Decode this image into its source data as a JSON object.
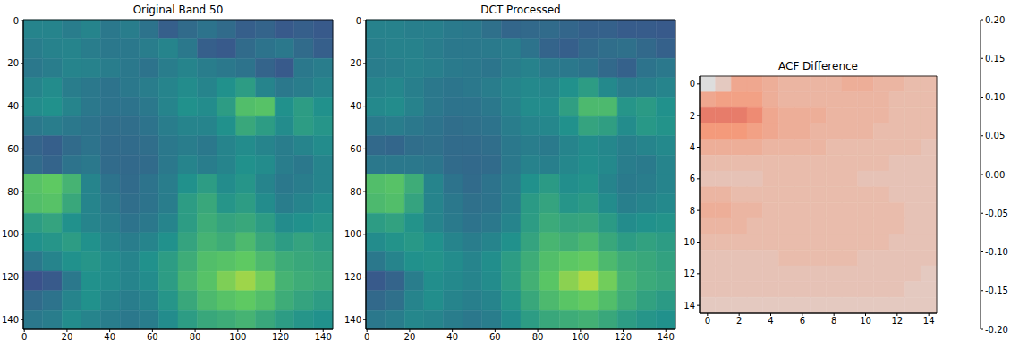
{
  "chart_data": [
    {
      "type": "image",
      "title": "Original Band 50",
      "color": "viridis",
      "clim": [
        0,
        1
      ],
      "xlim": [
        -0.5,
        144.5
      ],
      "ylim": [
        -0.5,
        144.5
      ],
      "xticks": [
        0,
        20,
        40,
        60,
        80,
        100,
        120,
        140
      ],
      "yticks": [
        0,
        20,
        40,
        60,
        80,
        100,
        120,
        140
      ],
      "cells": [
        [
          0.45,
          0.45,
          0.42,
          0.45,
          0.4,
          0.42,
          0.38,
          0.3,
          0.35,
          0.38,
          0.35,
          0.3,
          0.32,
          0.28,
          0.3,
          0.28
        ],
        [
          0.42,
          0.44,
          0.45,
          0.42,
          0.4,
          0.4,
          0.42,
          0.45,
          0.4,
          0.3,
          0.28,
          0.35,
          0.38,
          0.4,
          0.35,
          0.3
        ],
        [
          0.4,
          0.42,
          0.45,
          0.44,
          0.42,
          0.4,
          0.38,
          0.42,
          0.45,
          0.42,
          0.4,
          0.38,
          0.32,
          0.28,
          0.4,
          0.42
        ],
        [
          0.45,
          0.48,
          0.42,
          0.4,
          0.38,
          0.4,
          0.42,
          0.45,
          0.48,
          0.45,
          0.5,
          0.55,
          0.45,
          0.4,
          0.42,
          0.45
        ],
        [
          0.48,
          0.5,
          0.45,
          0.4,
          0.38,
          0.38,
          0.4,
          0.45,
          0.5,
          0.48,
          0.55,
          0.7,
          0.72,
          0.5,
          0.55,
          0.5
        ],
        [
          0.4,
          0.42,
          0.4,
          0.38,
          0.36,
          0.36,
          0.38,
          0.42,
          0.45,
          0.45,
          0.5,
          0.6,
          0.55,
          0.48,
          0.55,
          0.52
        ],
        [
          0.32,
          0.3,
          0.35,
          0.38,
          0.35,
          0.35,
          0.36,
          0.4,
          0.42,
          0.4,
          0.45,
          0.48,
          0.45,
          0.42,
          0.45,
          0.48
        ],
        [
          0.35,
          0.32,
          0.38,
          0.4,
          0.35,
          0.34,
          0.35,
          0.4,
          0.45,
          0.42,
          0.45,
          0.5,
          0.48,
          0.42,
          0.4,
          0.45
        ],
        [
          0.72,
          0.75,
          0.65,
          0.45,
          0.38,
          0.35,
          0.38,
          0.42,
          0.5,
          0.55,
          0.48,
          0.52,
          0.45,
          0.4,
          0.42,
          0.45
        ],
        [
          0.7,
          0.72,
          0.6,
          0.45,
          0.4,
          0.36,
          0.38,
          0.42,
          0.55,
          0.6,
          0.52,
          0.55,
          0.48,
          0.42,
          0.45,
          0.48
        ],
        [
          0.55,
          0.58,
          0.5,
          0.45,
          0.42,
          0.38,
          0.4,
          0.45,
          0.55,
          0.62,
          0.58,
          0.6,
          0.55,
          0.48,
          0.5,
          0.52
        ],
        [
          0.5,
          0.52,
          0.55,
          0.5,
          0.45,
          0.42,
          0.45,
          0.5,
          0.58,
          0.65,
          0.62,
          0.68,
          0.6,
          0.55,
          0.58,
          0.55
        ],
        [
          0.4,
          0.45,
          0.5,
          0.52,
          0.48,
          0.45,
          0.5,
          0.55,
          0.62,
          0.7,
          0.72,
          0.75,
          0.68,
          0.62,
          0.6,
          0.58
        ],
        [
          0.25,
          0.28,
          0.4,
          0.5,
          0.48,
          0.45,
          0.48,
          0.55,
          0.65,
          0.72,
          0.8,
          0.85,
          0.78,
          0.65,
          0.62,
          0.6
        ],
        [
          0.35,
          0.38,
          0.45,
          0.5,
          0.45,
          0.42,
          0.45,
          0.52,
          0.6,
          0.68,
          0.72,
          0.75,
          0.7,
          0.62,
          0.58,
          0.55
        ],
        [
          0.4,
          0.42,
          0.48,
          0.45,
          0.42,
          0.4,
          0.42,
          0.48,
          0.55,
          0.6,
          0.62,
          0.65,
          0.6,
          0.55,
          0.52,
          0.5
        ]
      ]
    },
    {
      "type": "image",
      "title": "DCT Processed",
      "color": "viridis",
      "clim": [
        0,
        1
      ],
      "xlim": [
        -0.5,
        144.5
      ],
      "ylim": [
        -0.5,
        144.5
      ],
      "xticks": [
        0,
        20,
        40,
        60,
        80,
        100,
        120,
        140
      ],
      "yticks": [
        0,
        20,
        40,
        60,
        80,
        100,
        120,
        140
      ],
      "cells": [
        [
          0.44,
          0.44,
          0.43,
          0.43,
          0.41,
          0.4,
          0.37,
          0.33,
          0.34,
          0.35,
          0.33,
          0.31,
          0.31,
          0.29,
          0.29,
          0.28
        ],
        [
          0.43,
          0.44,
          0.44,
          0.42,
          0.4,
          0.4,
          0.41,
          0.42,
          0.38,
          0.32,
          0.3,
          0.34,
          0.36,
          0.37,
          0.34,
          0.31
        ],
        [
          0.42,
          0.43,
          0.44,
          0.43,
          0.41,
          0.4,
          0.39,
          0.42,
          0.44,
          0.41,
          0.4,
          0.38,
          0.34,
          0.31,
          0.38,
          0.4
        ],
        [
          0.45,
          0.46,
          0.43,
          0.4,
          0.39,
          0.4,
          0.42,
          0.45,
          0.47,
          0.46,
          0.5,
          0.55,
          0.47,
          0.42,
          0.43,
          0.45
        ],
        [
          0.47,
          0.48,
          0.44,
          0.4,
          0.38,
          0.38,
          0.4,
          0.44,
          0.48,
          0.48,
          0.56,
          0.68,
          0.68,
          0.52,
          0.54,
          0.5
        ],
        [
          0.41,
          0.42,
          0.4,
          0.38,
          0.36,
          0.37,
          0.38,
          0.42,
          0.45,
          0.46,
          0.5,
          0.58,
          0.56,
          0.48,
          0.53,
          0.51
        ],
        [
          0.34,
          0.33,
          0.36,
          0.37,
          0.35,
          0.35,
          0.36,
          0.4,
          0.42,
          0.41,
          0.45,
          0.48,
          0.46,
          0.43,
          0.45,
          0.47
        ],
        [
          0.4,
          0.4,
          0.4,
          0.39,
          0.35,
          0.34,
          0.35,
          0.4,
          0.44,
          0.43,
          0.46,
          0.49,
          0.47,
          0.42,
          0.41,
          0.45
        ],
        [
          0.7,
          0.72,
          0.62,
          0.45,
          0.38,
          0.35,
          0.38,
          0.42,
          0.5,
          0.54,
          0.49,
          0.51,
          0.45,
          0.41,
          0.42,
          0.45
        ],
        [
          0.68,
          0.7,
          0.58,
          0.45,
          0.4,
          0.37,
          0.38,
          0.43,
          0.54,
          0.58,
          0.52,
          0.54,
          0.48,
          0.43,
          0.45,
          0.47
        ],
        [
          0.55,
          0.57,
          0.51,
          0.45,
          0.41,
          0.38,
          0.4,
          0.45,
          0.55,
          0.61,
          0.58,
          0.59,
          0.54,
          0.48,
          0.5,
          0.51
        ],
        [
          0.48,
          0.51,
          0.53,
          0.5,
          0.45,
          0.42,
          0.45,
          0.5,
          0.58,
          0.66,
          0.63,
          0.67,
          0.6,
          0.55,
          0.57,
          0.55
        ],
        [
          0.4,
          0.45,
          0.5,
          0.51,
          0.48,
          0.45,
          0.49,
          0.55,
          0.62,
          0.7,
          0.74,
          0.76,
          0.68,
          0.62,
          0.6,
          0.57
        ],
        [
          0.28,
          0.32,
          0.42,
          0.49,
          0.47,
          0.45,
          0.48,
          0.55,
          0.64,
          0.73,
          0.82,
          0.88,
          0.78,
          0.65,
          0.61,
          0.59
        ],
        [
          0.34,
          0.37,
          0.45,
          0.49,
          0.45,
          0.43,
          0.45,
          0.52,
          0.6,
          0.68,
          0.73,
          0.76,
          0.7,
          0.62,
          0.57,
          0.54
        ],
        [
          0.4,
          0.42,
          0.46,
          0.45,
          0.42,
          0.4,
          0.42,
          0.48,
          0.55,
          0.6,
          0.62,
          0.64,
          0.6,
          0.55,
          0.52,
          0.5
        ]
      ]
    },
    {
      "type": "heatmap",
      "title": "ACF Difference",
      "color": "coolwarm",
      "xlim": [
        -0.5,
        14.5
      ],
      "ylim": [
        -0.5,
        14.5
      ],
      "xticks": [
        0,
        2,
        4,
        6,
        8,
        10,
        12,
        14
      ],
      "yticks": [
        0,
        2,
        4,
        6,
        8,
        10,
        12,
        14
      ],
      "colorbar_lim": [
        -0.2,
        0.2
      ],
      "colorbar_ticks": [
        {
          "value": -0.2,
          "label": "-0.20"
        },
        {
          "value": -0.15,
          "label": "-0.15"
        },
        {
          "value": -0.1,
          "label": "-0.10"
        },
        {
          "value": -0.05,
          "label": "-0.05"
        },
        {
          "value": 0,
          "label": "0.00"
        },
        {
          "value": 0.05,
          "label": "0.05"
        },
        {
          "value": 0.1,
          "label": "0.10"
        },
        {
          "value": 0.15,
          "label": "0.15"
        },
        {
          "value": 0.2,
          "label": "0.20"
        }
      ],
      "cells": [
        [
          0.0,
          0.03,
          0.08,
          0.08,
          0.07,
          0.06,
          0.06,
          0.06,
          0.06,
          0.07,
          0.07,
          0.06,
          0.06,
          0.05,
          0.05
        ],
        [
          0.08,
          0.09,
          0.09,
          0.09,
          0.07,
          0.06,
          0.06,
          0.06,
          0.06,
          0.06,
          0.06,
          0.06,
          0.05,
          0.05,
          0.05
        ],
        [
          0.12,
          0.12,
          0.12,
          0.11,
          0.08,
          0.07,
          0.07,
          0.07,
          0.06,
          0.06,
          0.06,
          0.06,
          0.05,
          0.05,
          0.05
        ],
        [
          0.1,
          0.1,
          0.1,
          0.09,
          0.08,
          0.07,
          0.07,
          0.06,
          0.06,
          0.06,
          0.06,
          0.05,
          0.05,
          0.05,
          0.05
        ],
        [
          0.07,
          0.07,
          0.07,
          0.07,
          0.06,
          0.06,
          0.06,
          0.06,
          0.05,
          0.05,
          0.05,
          0.05,
          0.05,
          0.05,
          0.04
        ],
        [
          0.05,
          0.05,
          0.05,
          0.05,
          0.05,
          0.05,
          0.05,
          0.05,
          0.05,
          0.05,
          0.05,
          0.05,
          0.04,
          0.04,
          0.04
        ],
        [
          0.04,
          0.04,
          0.04,
          0.04,
          0.05,
          0.05,
          0.05,
          0.05,
          0.05,
          0.05,
          0.04,
          0.04,
          0.04,
          0.04,
          0.04
        ],
        [
          0.06,
          0.06,
          0.05,
          0.05,
          0.05,
          0.05,
          0.05,
          0.05,
          0.05,
          0.05,
          0.05,
          0.05,
          0.04,
          0.04,
          0.04
        ],
        [
          0.07,
          0.07,
          0.06,
          0.06,
          0.05,
          0.05,
          0.05,
          0.05,
          0.05,
          0.05,
          0.05,
          0.05,
          0.05,
          0.04,
          0.04
        ],
        [
          0.06,
          0.06,
          0.06,
          0.05,
          0.05,
          0.05,
          0.05,
          0.05,
          0.05,
          0.05,
          0.05,
          0.05,
          0.05,
          0.04,
          0.04
        ],
        [
          0.05,
          0.05,
          0.05,
          0.05,
          0.05,
          0.05,
          0.05,
          0.05,
          0.05,
          0.05,
          0.05,
          0.05,
          0.04,
          0.04,
          0.04
        ],
        [
          0.04,
          0.04,
          0.04,
          0.04,
          0.04,
          0.05,
          0.05,
          0.05,
          0.05,
          0.05,
          0.04,
          0.04,
          0.04,
          0.04,
          0.04
        ],
        [
          0.04,
          0.04,
          0.04,
          0.04,
          0.04,
          0.04,
          0.04,
          0.04,
          0.04,
          0.04,
          0.04,
          0.04,
          0.04,
          0.04,
          0.03
        ],
        [
          0.04,
          0.04,
          0.04,
          0.04,
          0.04,
          0.04,
          0.04,
          0.04,
          0.04,
          0.04,
          0.04,
          0.04,
          0.04,
          0.03,
          0.03
        ],
        [
          0.03,
          0.03,
          0.03,
          0.03,
          0.03,
          0.03,
          0.03,
          0.03,
          0.03,
          0.03,
          0.03,
          0.03,
          0.03,
          0.03,
          0.03
        ]
      ]
    }
  ]
}
